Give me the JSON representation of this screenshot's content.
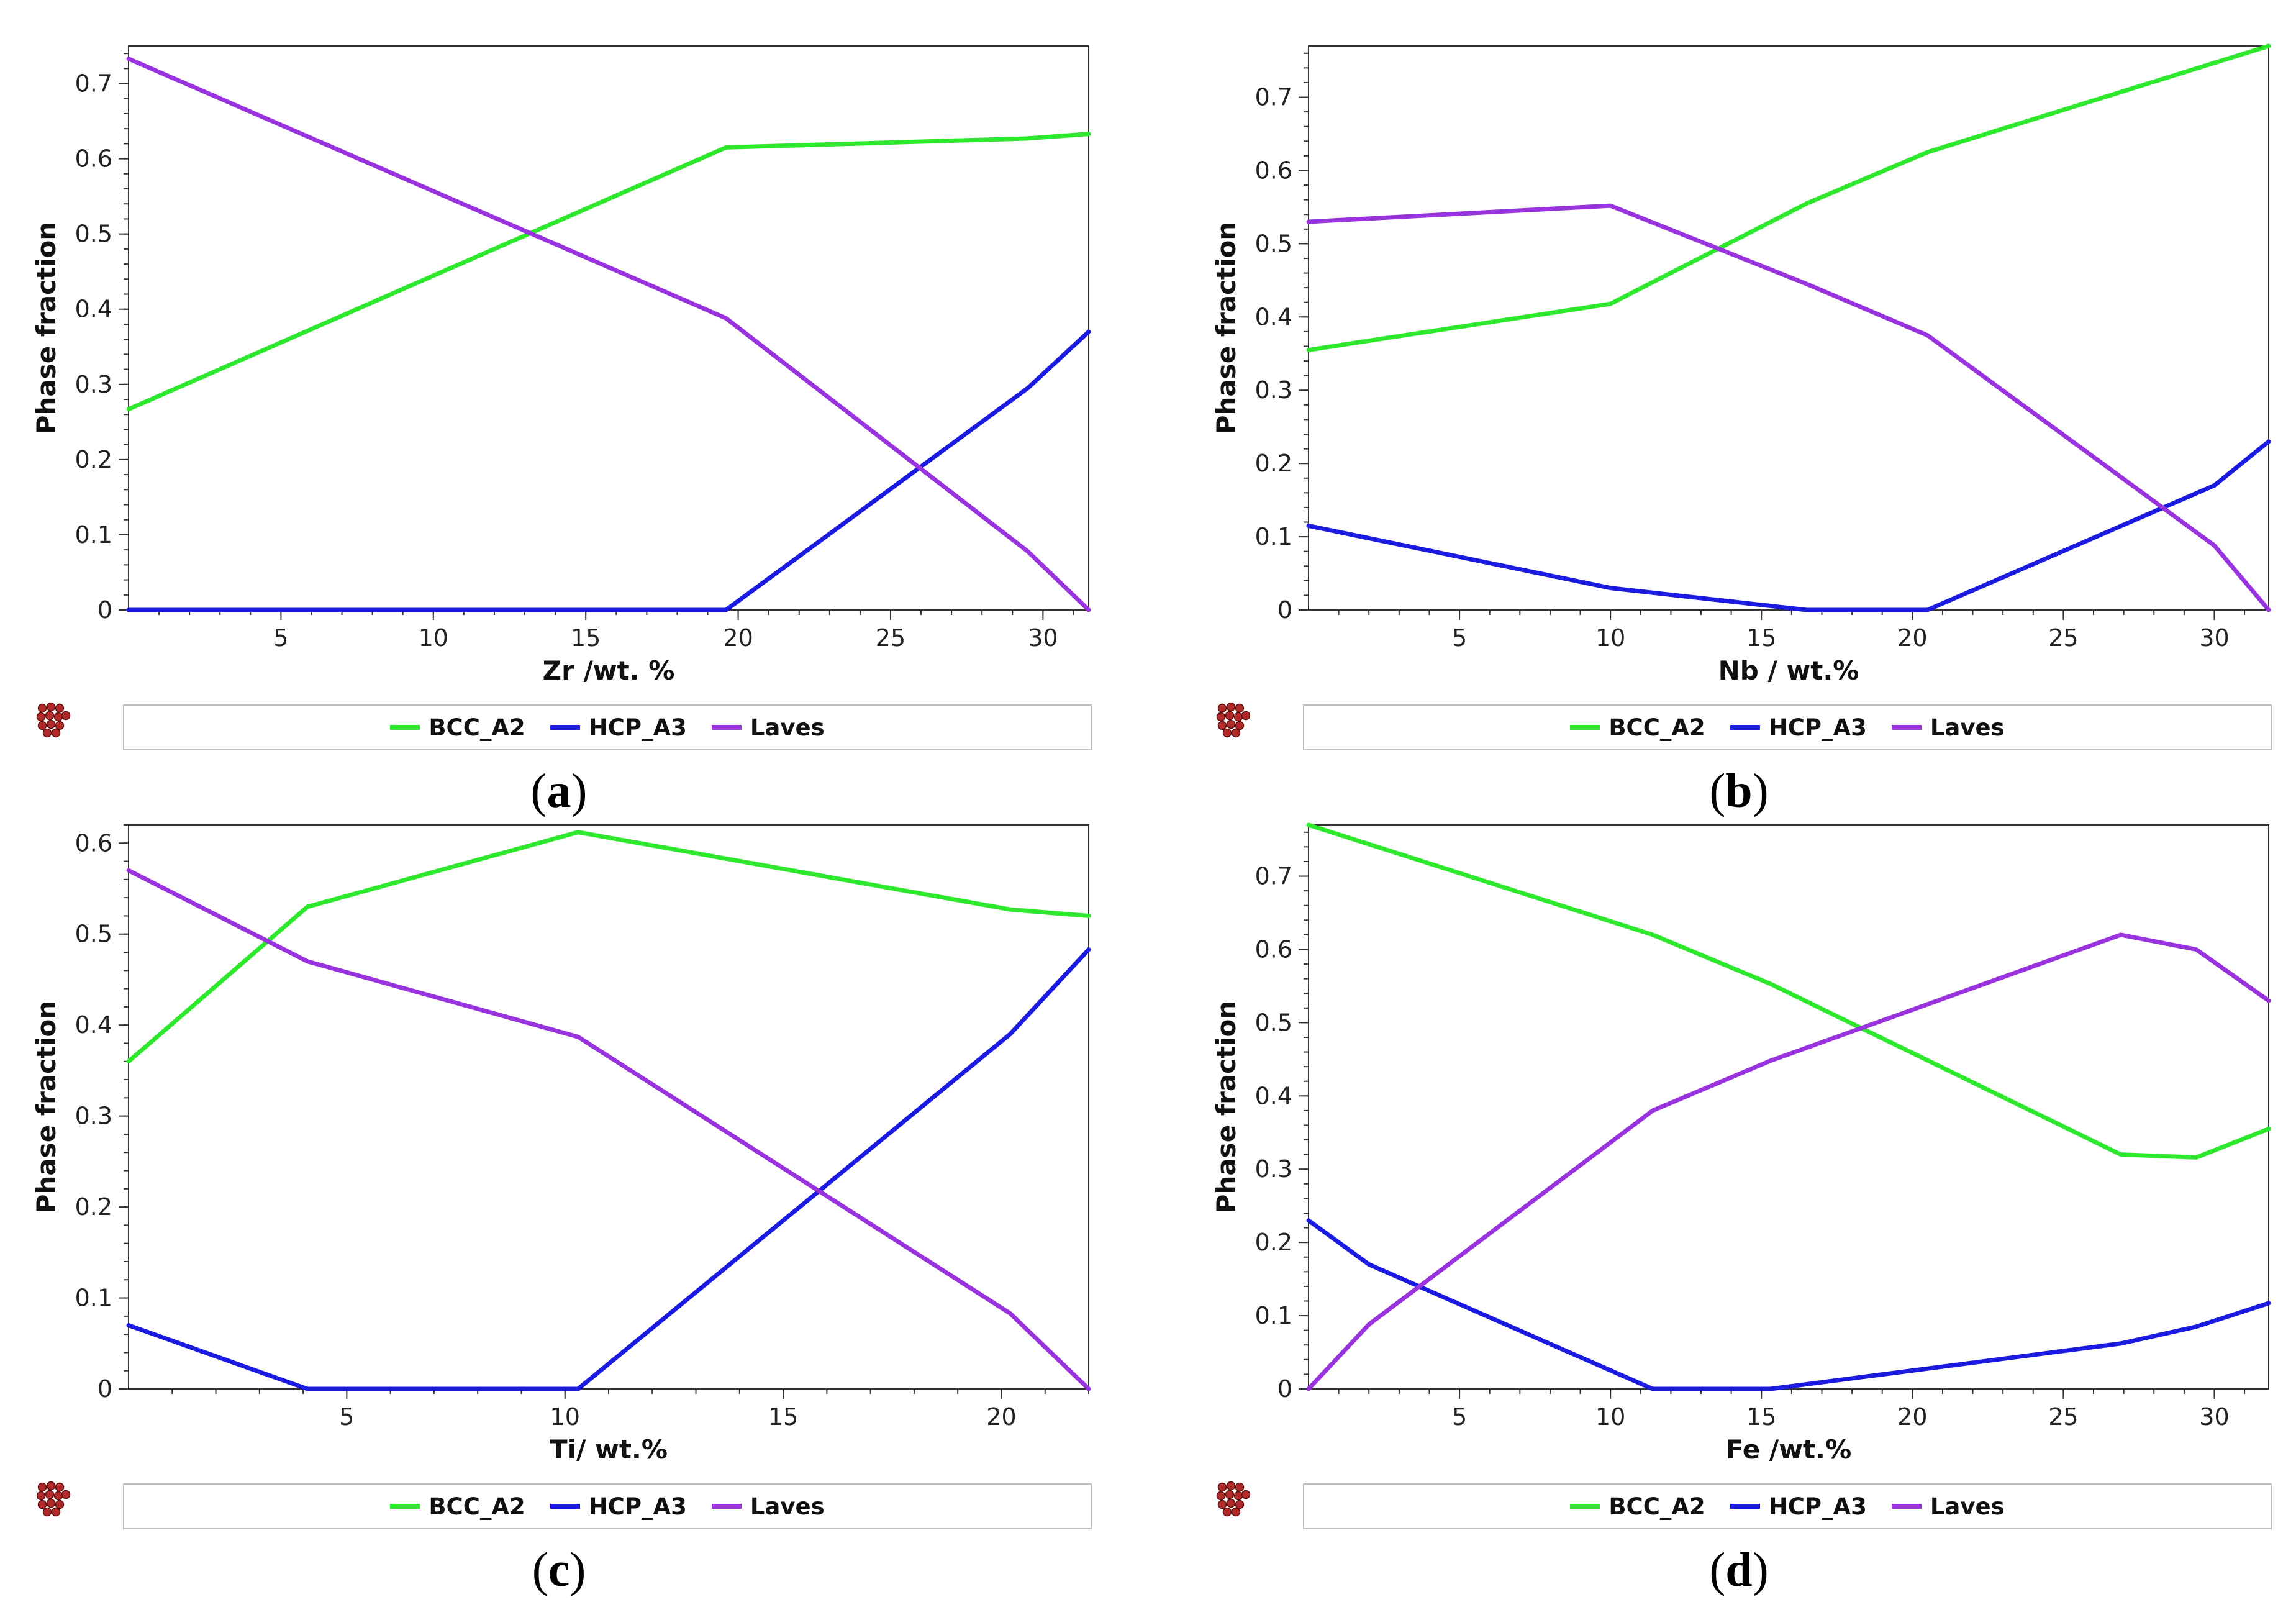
{
  "colors": {
    "BCC_A2": "#2ee82e",
    "HCP_A3": "#1a1ae0",
    "Laves": "#9933dd"
  },
  "chart_data": [
    {
      "id": "a",
      "type": "line",
      "label_open": "(",
      "label_letter": "a",
      "label_close": ")",
      "xlabel": "Zr /wt. %",
      "ylabel": "Phase fraction",
      "xlim": [
        0,
        31.5
      ],
      "ylim": [
        0,
        0.75
      ],
      "xticks": [
        5,
        10,
        15,
        20,
        25,
        30
      ],
      "yticks": [
        0,
        0.1,
        0.2,
        0.3,
        0.4,
        0.5,
        0.6,
        0.7
      ],
      "ytick_labels": [
        "0",
        "0.1",
        "0.2",
        "0.3",
        "0.4",
        "0.5",
        "0.6",
        "0.7"
      ],
      "xtick_labels": [
        "5",
        "10",
        "15",
        "20",
        "25",
        "30"
      ],
      "legend": [
        "BCC_A2",
        "HCP_A3",
        "Laves"
      ],
      "series": [
        {
          "name": "BCC_A2",
          "x": [
            0,
            19.6,
            29.5,
            31.5
          ],
          "y": [
            0.267,
            0.615,
            0.627,
            0.633
          ]
        },
        {
          "name": "HCP_A3",
          "x": [
            0,
            19.6,
            29.5,
            31.5
          ],
          "y": [
            0,
            0,
            0.295,
            0.37
          ]
        },
        {
          "name": "Laves",
          "x": [
            0,
            19.6,
            29.5,
            31.5
          ],
          "y": [
            0.733,
            0.388,
            0.078,
            0
          ]
        }
      ]
    },
    {
      "id": "b",
      "type": "line",
      "label_open": "(",
      "label_letter": "b",
      "label_close": ")",
      "xlabel": "Nb / wt.%",
      "ylabel": "Phase fraction",
      "xlim": [
        0,
        31.8
      ],
      "ylim": [
        0,
        0.77
      ],
      "xticks": [
        5,
        10,
        15,
        20,
        25,
        30
      ],
      "yticks": [
        0,
        0.1,
        0.2,
        0.3,
        0.4,
        0.5,
        0.6,
        0.7
      ],
      "ytick_labels": [
        "0",
        "0.1",
        "0.2",
        "0.3",
        "0.4",
        "0.5",
        "0.6",
        "0.7"
      ],
      "xtick_labels": [
        "5",
        "10",
        "15",
        "20",
        "25",
        "30"
      ],
      "legend": [
        "BCC_A2",
        "HCP_A3",
        "Laves"
      ],
      "series": [
        {
          "name": "BCC_A2",
          "x": [
            0,
            10,
            16.5,
            20.5,
            31.8
          ],
          "y": [
            0.355,
            0.418,
            0.555,
            0.625,
            0.77
          ]
        },
        {
          "name": "HCP_A3",
          "x": [
            0,
            10,
            16.5,
            20.5,
            30,
            31.8
          ],
          "y": [
            0.115,
            0.03,
            0,
            0,
            0.17,
            0.23
          ]
        },
        {
          "name": "Laves",
          "x": [
            0,
            10,
            16.5,
            20.5,
            30,
            31.8
          ],
          "y": [
            0.53,
            0.552,
            0.445,
            0.375,
            0.088,
            0
          ]
        }
      ]
    },
    {
      "id": "c",
      "type": "line",
      "label_open": "(",
      "label_letter": "c",
      "label_close": ")",
      "xlabel": "Ti/ wt.%",
      "ylabel": "Phase fraction",
      "xlim": [
        0,
        22
      ],
      "ylim": [
        0,
        0.62
      ],
      "xticks": [
        5,
        10,
        15,
        20
      ],
      "yticks": [
        0,
        0.1,
        0.2,
        0.3,
        0.4,
        0.5,
        0.6
      ],
      "ytick_labels": [
        "0",
        "0.1",
        "0.2",
        "0.3",
        "0.4",
        "0.5",
        "0.6"
      ],
      "xtick_labels": [
        "5",
        "10",
        "15",
        "20"
      ],
      "legend": [
        "BCC_A2",
        "HCP_A3",
        "Laves"
      ],
      "series": [
        {
          "name": "BCC_A2",
          "x": [
            0,
            4.1,
            10.3,
            20.2,
            22
          ],
          "y": [
            0.36,
            0.53,
            0.612,
            0.527,
            0.52
          ]
        },
        {
          "name": "HCP_A3",
          "x": [
            0,
            4.1,
            10.3,
            20.2,
            22
          ],
          "y": [
            0.07,
            0,
            0,
            0.39,
            0.483
          ]
        },
        {
          "name": "Laves",
          "x": [
            0,
            4.1,
            10.3,
            20.2,
            22
          ],
          "y": [
            0.57,
            0.47,
            0.387,
            0.083,
            0
          ]
        }
      ]
    },
    {
      "id": "d",
      "type": "line",
      "label_open": "(",
      "label_letter": "d",
      "label_close": ")",
      "xlabel": "Fe /wt.%",
      "ylabel": "Phase fraction",
      "xlim": [
        0,
        31.8
      ],
      "ylim": [
        0,
        0.77
      ],
      "xticks": [
        5,
        10,
        15,
        20,
        25,
        30
      ],
      "yticks": [
        0,
        0.1,
        0.2,
        0.3,
        0.4,
        0.5,
        0.6,
        0.7
      ],
      "ytick_labels": [
        "0",
        "0.1",
        "0.2",
        "0.3",
        "0.4",
        "0.5",
        "0.6",
        "0.7"
      ],
      "xtick_labels": [
        "5",
        "10",
        "15",
        "20",
        "25",
        "30"
      ],
      "legend": [
        "BCC_A2",
        "HCP_A3",
        "Laves"
      ],
      "series": [
        {
          "name": "BCC_A2",
          "x": [
            0,
            11.4,
            15.3,
            26.9,
            29.4,
            31.8
          ],
          "y": [
            0.77,
            0.62,
            0.553,
            0.32,
            0.316,
            0.355
          ]
        },
        {
          "name": "HCP_A3",
          "x": [
            0,
            2,
            11.4,
            15.3,
            26.9,
            29.4,
            31.8
          ],
          "y": [
            0.23,
            0.17,
            0,
            0,
            0.062,
            0.085,
            0.117
          ]
        },
        {
          "name": "Laves",
          "x": [
            0,
            2,
            11.4,
            15.3,
            26.9,
            29.4,
            31.8
          ],
          "y": [
            0,
            0.088,
            0.38,
            0.448,
            0.62,
            0.6,
            0.53
          ]
        }
      ]
    }
  ]
}
